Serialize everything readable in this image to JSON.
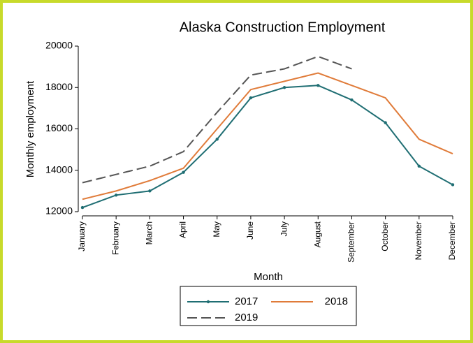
{
  "chart_data": {
    "type": "line",
    "title": "Alaska Construction Employment",
    "x_label": "Month",
    "y_label": "Monthly employment",
    "categories": [
      "January",
      "February",
      "March",
      "April",
      "May",
      "June",
      "July",
      "August",
      "September",
      "October",
      "November",
      "December"
    ],
    "series": [
      {
        "name": "2017",
        "color": "#1f6e73",
        "marker": true,
        "dash": false,
        "values": [
          12200,
          12800,
          13000,
          13900,
          15500,
          17500,
          18000,
          18100,
          17400,
          16300,
          14200,
          13300
        ]
      },
      {
        "name": "2018",
        "color": "#e07b39",
        "marker": false,
        "dash": false,
        "values": [
          12600,
          13000,
          13500,
          14100,
          16000,
          17900,
          18300,
          18700,
          18100,
          17500,
          15500,
          14800
        ]
      },
      {
        "name": "2019",
        "color": "#555555",
        "marker": false,
        "dash": true,
        "values": [
          13400,
          13800,
          14200,
          14900,
          16800,
          18600,
          18900,
          19500,
          18900,
          null,
          null,
          null
        ]
      }
    ],
    "ylim": [
      12000,
      20000
    ],
    "yticks": [
      12000,
      14000,
      16000,
      18000,
      20000
    ],
    "grid": false,
    "legend": "bottom"
  }
}
